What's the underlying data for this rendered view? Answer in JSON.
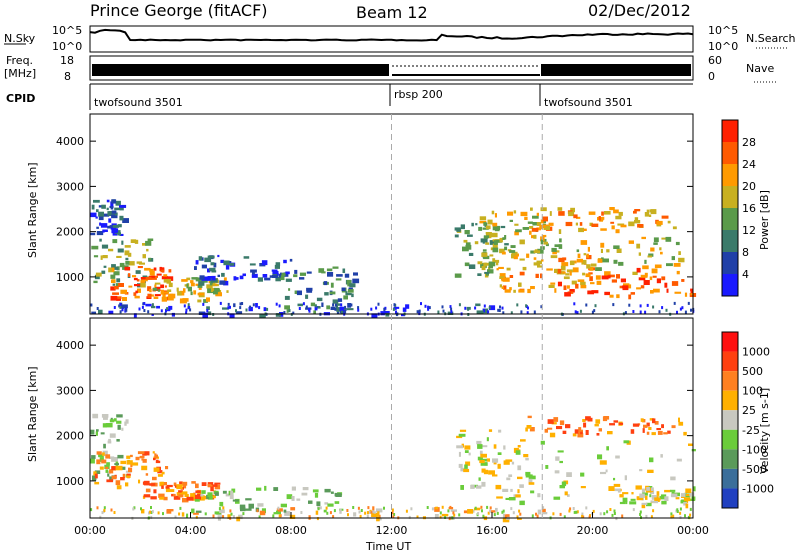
{
  "header": {
    "station": "Prince George (fitACF)",
    "beam": "Beam 12",
    "date": "02/Dec/2012"
  },
  "strip_panels": {
    "nsky": {
      "label": "N.Sky",
      "ticks": [
        "10^5",
        "10^0"
      ],
      "right_label": "N.Search",
      "right_ticks": [
        "10^5",
        "10^0"
      ]
    },
    "freq": {
      "label_line1": "Freq.",
      "label_line2": "[MHz]",
      "ticks": [
        "18",
        "8"
      ],
      "right_label": "Nave",
      "right_ticks": [
        "60",
        "0"
      ]
    },
    "cpid": {
      "label": "CPID",
      "segments": [
        {
          "name": "twofsound 3501",
          "start_h": 0,
          "end_h": 12
        },
        {
          "name": "rbsp 200",
          "start_h": 12,
          "end_h": 18
        },
        {
          "name": "twofsound 3501",
          "start_h": 18,
          "end_h": 24
        }
      ]
    }
  },
  "axes": {
    "xlabel": "Time UT",
    "xticks": [
      "00:00",
      "04:00",
      "08:00",
      "12:00",
      "16:00",
      "20:00",
      "00:00"
    ],
    "ylabel": "Slant Range [km]",
    "yticks": [
      "1000",
      "2000",
      "3000",
      "4000"
    ]
  },
  "colorbars": {
    "power": {
      "label": "Power [dB]",
      "ticks": [
        "4",
        "8",
        "12",
        "16",
        "20",
        "24",
        "28"
      ],
      "colors": [
        "#1a1aff",
        "#2040a8",
        "#3a7a6a",
        "#5a9a4a",
        "#c8b020",
        "#ff9a00",
        "#ff5a00",
        "#ff2000"
      ]
    },
    "velocity": {
      "label": "Velocity [m s-1]",
      "ticks": [
        "1000",
        "500",
        "100",
        "25",
        "-25",
        "-100",
        "-500",
        "-1000"
      ],
      "colors": [
        "#2040c0",
        "#3a6e9a",
        "#5a9a5a",
        "#6acc3a",
        "#c8c8c0",
        "#ffb000",
        "#ff8020",
        "#ff4010",
        "#ff1010"
      ]
    }
  },
  "chart_data": {
    "type": "heatmap",
    "x_unit": "hours UT",
    "xlim": [
      0,
      24
    ],
    "ylim": [
      180,
      4600
    ],
    "scan_mode_boundaries_h": [
      12,
      18
    ],
    "power_blobs": [
      {
        "t": 0.5,
        "r": 2350,
        "dt": 0.8,
        "dr": 400,
        "level": 1
      },
      {
        "t": 1.0,
        "r": 1350,
        "dt": 1.5,
        "dr": 500,
        "level": 3
      },
      {
        "t": 2.0,
        "r": 900,
        "dt": 1.2,
        "dr": 350,
        "level": 6
      },
      {
        "t": 4.0,
        "r": 750,
        "dt": 1.5,
        "dr": 250,
        "level": 4
      },
      {
        "t": 6.0,
        "r": 1200,
        "dt": 2.0,
        "dr": 300,
        "level": 1
      },
      {
        "t": 9.0,
        "r": 750,
        "dt": 1.5,
        "dr": 500,
        "level": 2
      },
      {
        "t": 8.0,
        "r": 300,
        "dt": 8.0,
        "dr": 150,
        "level": 1
      },
      {
        "t": 15.5,
        "r": 1600,
        "dt": 1.0,
        "dr": 600,
        "level": 3
      },
      {
        "t": 17.0,
        "r": 2000,
        "dt": 1.5,
        "dr": 500,
        "level": 4
      },
      {
        "t": 18.0,
        "r": 1100,
        "dt": 2.0,
        "dr": 400,
        "level": 5
      },
      {
        "t": 20.5,
        "r": 2300,
        "dt": 3.0,
        "dr": 250,
        "level": 5
      },
      {
        "t": 20.5,
        "r": 1500,
        "dt": 3.0,
        "dr": 400,
        "level": 4
      },
      {
        "t": 21.5,
        "r": 900,
        "dt": 3.0,
        "dr": 300,
        "level": 6
      }
    ],
    "velocity_blobs": [
      {
        "t": 0.5,
        "r": 1800,
        "dt": 1.0,
        "dr": 700,
        "level": 3
      },
      {
        "t": 1.5,
        "r": 1300,
        "dt": 1.5,
        "dr": 400,
        "level": 6
      },
      {
        "t": 3.5,
        "r": 800,
        "dt": 1.5,
        "dr": 200,
        "level": 6
      },
      {
        "t": 7.0,
        "r": 600,
        "dt": 3.0,
        "dr": 300,
        "level": 3
      },
      {
        "t": 10.0,
        "r": 300,
        "dt": 8.0,
        "dr": 150,
        "level": 5
      },
      {
        "t": 16.0,
        "r": 1500,
        "dt": 1.5,
        "dr": 700,
        "level": 4
      },
      {
        "t": 20.5,
        "r": 2250,
        "dt": 3.2,
        "dr": 200,
        "level": 6
      },
      {
        "t": 20.0,
        "r": 1200,
        "dt": 4.0,
        "dr": 700,
        "level": 4
      },
      {
        "t": 22.5,
        "r": 700,
        "dt": 1.5,
        "dr": 200,
        "level": 4
      }
    ]
  }
}
